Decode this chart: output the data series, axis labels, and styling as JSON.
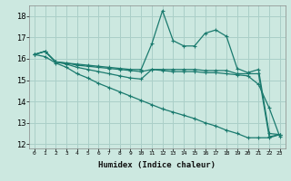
{
  "title": "",
  "xlabel": "Humidex (Indice chaleur)",
  "ylabel": "",
  "xlim": [
    -0.5,
    23.5
  ],
  "ylim": [
    11.8,
    18.5
  ],
  "xticks": [
    0,
    1,
    2,
    3,
    4,
    5,
    6,
    7,
    8,
    9,
    10,
    11,
    12,
    13,
    14,
    15,
    16,
    17,
    18,
    19,
    20,
    21,
    22,
    23
  ],
  "yticks": [
    12,
    13,
    14,
    15,
    16,
    17,
    18
  ],
  "bg_color": "#cce8e0",
  "line_color": "#1a7a6e",
  "grid_color": "#aacfc8",
  "series": [
    {
      "x": [
        0,
        1,
        2,
        3,
        4,
        5,
        6,
        7,
        8,
        9,
        10,
        11,
        12,
        13,
        14,
        15,
        16,
        17,
        18,
        19,
        20,
        21,
        22,
        23
      ],
      "y": [
        16.2,
        16.35,
        15.85,
        15.8,
        15.75,
        15.7,
        15.65,
        15.6,
        15.55,
        15.5,
        15.5,
        16.7,
        18.25,
        16.85,
        16.6,
        16.6,
        17.2,
        17.35,
        17.05,
        15.55,
        15.35,
        15.5,
        12.5,
        12.45
      ],
      "style": "-",
      "marker": "+"
    },
    {
      "x": [
        0,
        1,
        2,
        3,
        4,
        5,
        6,
        7,
        8,
        9,
        10,
        11,
        12,
        13,
        14,
        15,
        16,
        17,
        18,
        19,
        20,
        21,
        22,
        23
      ],
      "y": [
        16.2,
        16.35,
        15.85,
        15.8,
        15.7,
        15.65,
        15.6,
        15.55,
        15.5,
        15.45,
        15.4,
        15.5,
        15.5,
        15.5,
        15.5,
        15.5,
        15.45,
        15.45,
        15.45,
        15.3,
        15.3,
        15.3,
        12.35,
        12.45
      ],
      "style": "-",
      "marker": "+"
    },
    {
      "x": [
        0,
        1,
        2,
        3,
        4,
        5,
        6,
        7,
        8,
        9,
        10,
        11,
        12,
        13,
        14,
        15,
        16,
        17,
        18,
        19,
        20,
        21,
        22,
        23
      ],
      "y": [
        16.2,
        16.35,
        15.85,
        15.75,
        15.6,
        15.5,
        15.4,
        15.3,
        15.2,
        15.1,
        15.05,
        15.5,
        15.45,
        15.4,
        15.4,
        15.4,
        15.35,
        15.35,
        15.3,
        15.25,
        15.2,
        14.8,
        13.7,
        12.35
      ],
      "style": "-",
      "marker": "+"
    },
    {
      "x": [
        0,
        1,
        2,
        3,
        4,
        5,
        6,
        7,
        8,
        9,
        10,
        11,
        12,
        13,
        14,
        15,
        16,
        17,
        18,
        19,
        20,
        21,
        22,
        23
      ],
      "y": [
        16.2,
        16.1,
        15.8,
        15.6,
        15.3,
        15.1,
        14.85,
        14.65,
        14.45,
        14.25,
        14.05,
        13.85,
        13.65,
        13.5,
        13.35,
        13.2,
        13.0,
        12.85,
        12.65,
        12.5,
        12.3,
        12.3,
        12.3,
        12.45
      ],
      "style": "-",
      "marker": "+"
    }
  ]
}
